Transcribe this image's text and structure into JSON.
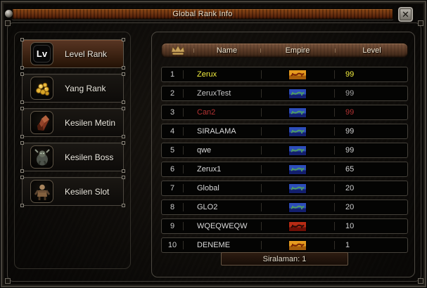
{
  "window": {
    "title": "Global Rank Info"
  },
  "titlebar": {
    "close_icon": "✕"
  },
  "sidebar": {
    "items": [
      {
        "id": "level-rank",
        "label": "Level Rank",
        "icon": "lv-icon",
        "icon_text": "Lv",
        "selected": true
      },
      {
        "id": "yang-rank",
        "label": "Yang Rank",
        "icon": "yang-coins-icon",
        "selected": false
      },
      {
        "id": "kesilen-metin",
        "label": "Kesilen Metin",
        "icon": "metin-stone-icon",
        "selected": false
      },
      {
        "id": "kesilen-boss",
        "label": "Kesilen Boss",
        "icon": "boss-monster-icon",
        "selected": false
      },
      {
        "id": "kesilen-slot",
        "label": "Kesilen Slot",
        "icon": "slot-monster-icon",
        "selected": false
      }
    ]
  },
  "table": {
    "header": {
      "rank_icon": "crown-icon",
      "name": "Name",
      "empire": "Empire",
      "level": "Level"
    },
    "rows": [
      {
        "rank": "1",
        "name": "Zerux",
        "empire_flag": "chunjo-yellow-flag",
        "level": "99",
        "name_color": "#f6f141",
        "level_color": "#f6f141"
      },
      {
        "rank": "2",
        "name": "ZeruxTest",
        "empire_flag": "jinno-blue-flag",
        "level": "99",
        "name_color": "#c7c7c7",
        "level_color": "#a8a8a8"
      },
      {
        "rank": "3",
        "name": "Can2",
        "empire_flag": "jinno-blue-flag",
        "level": "99",
        "name_color": "#b43434",
        "level_color": "#b43434"
      },
      {
        "rank": "4",
        "name": "SIRALAMA",
        "empire_flag": "jinno-blue-flag",
        "level": "99",
        "name_color": "#dcdcdc",
        "level_color": "#d2d2d2"
      },
      {
        "rank": "5",
        "name": "qwe",
        "empire_flag": "jinno-blue-flag",
        "level": "99",
        "name_color": "#dcdcdc",
        "level_color": "#d2d2d2"
      },
      {
        "rank": "6",
        "name": "Zerux1",
        "empire_flag": "jinno-blue-flag",
        "level": "65",
        "name_color": "#dcdcdc",
        "level_color": "#d2d2d2"
      },
      {
        "rank": "7",
        "name": "Global",
        "empire_flag": "jinno-blue-flag",
        "level": "20",
        "name_color": "#dcdcdc",
        "level_color": "#d2d2d2"
      },
      {
        "rank": "8",
        "name": "GLO2",
        "empire_flag": "jinno-blue-flag",
        "level": "20",
        "name_color": "#dcdcdc",
        "level_color": "#d2d2d2"
      },
      {
        "rank": "9",
        "name": "WQEQWEQW",
        "empire_flag": "shinsoo-red-flag",
        "level": "10",
        "name_color": "#dcdcdc",
        "level_color": "#d2d2d2"
      },
      {
        "rank": "10",
        "name": "DENEME",
        "empire_flag": "chunjo-yellow-flag",
        "level": "1",
        "name_color": "#dcdcdc",
        "level_color": "#d2d2d2"
      }
    ],
    "footer_label": "Siralaman: 1"
  },
  "colors": {
    "titlebar_brown": "#6e3410",
    "header_brown": "#5d3d29",
    "crown_gold": "#c9a35c",
    "rank1_yellow": "#f6f141",
    "rank3_red": "#b43434",
    "flag_chunjo_yellow": "#e09a1c",
    "flag_jinno_blue": "#2c4cbe",
    "flag_shinsoo_red": "#b42a14",
    "row_bg": "#040403",
    "row_border": "#45413a"
  }
}
